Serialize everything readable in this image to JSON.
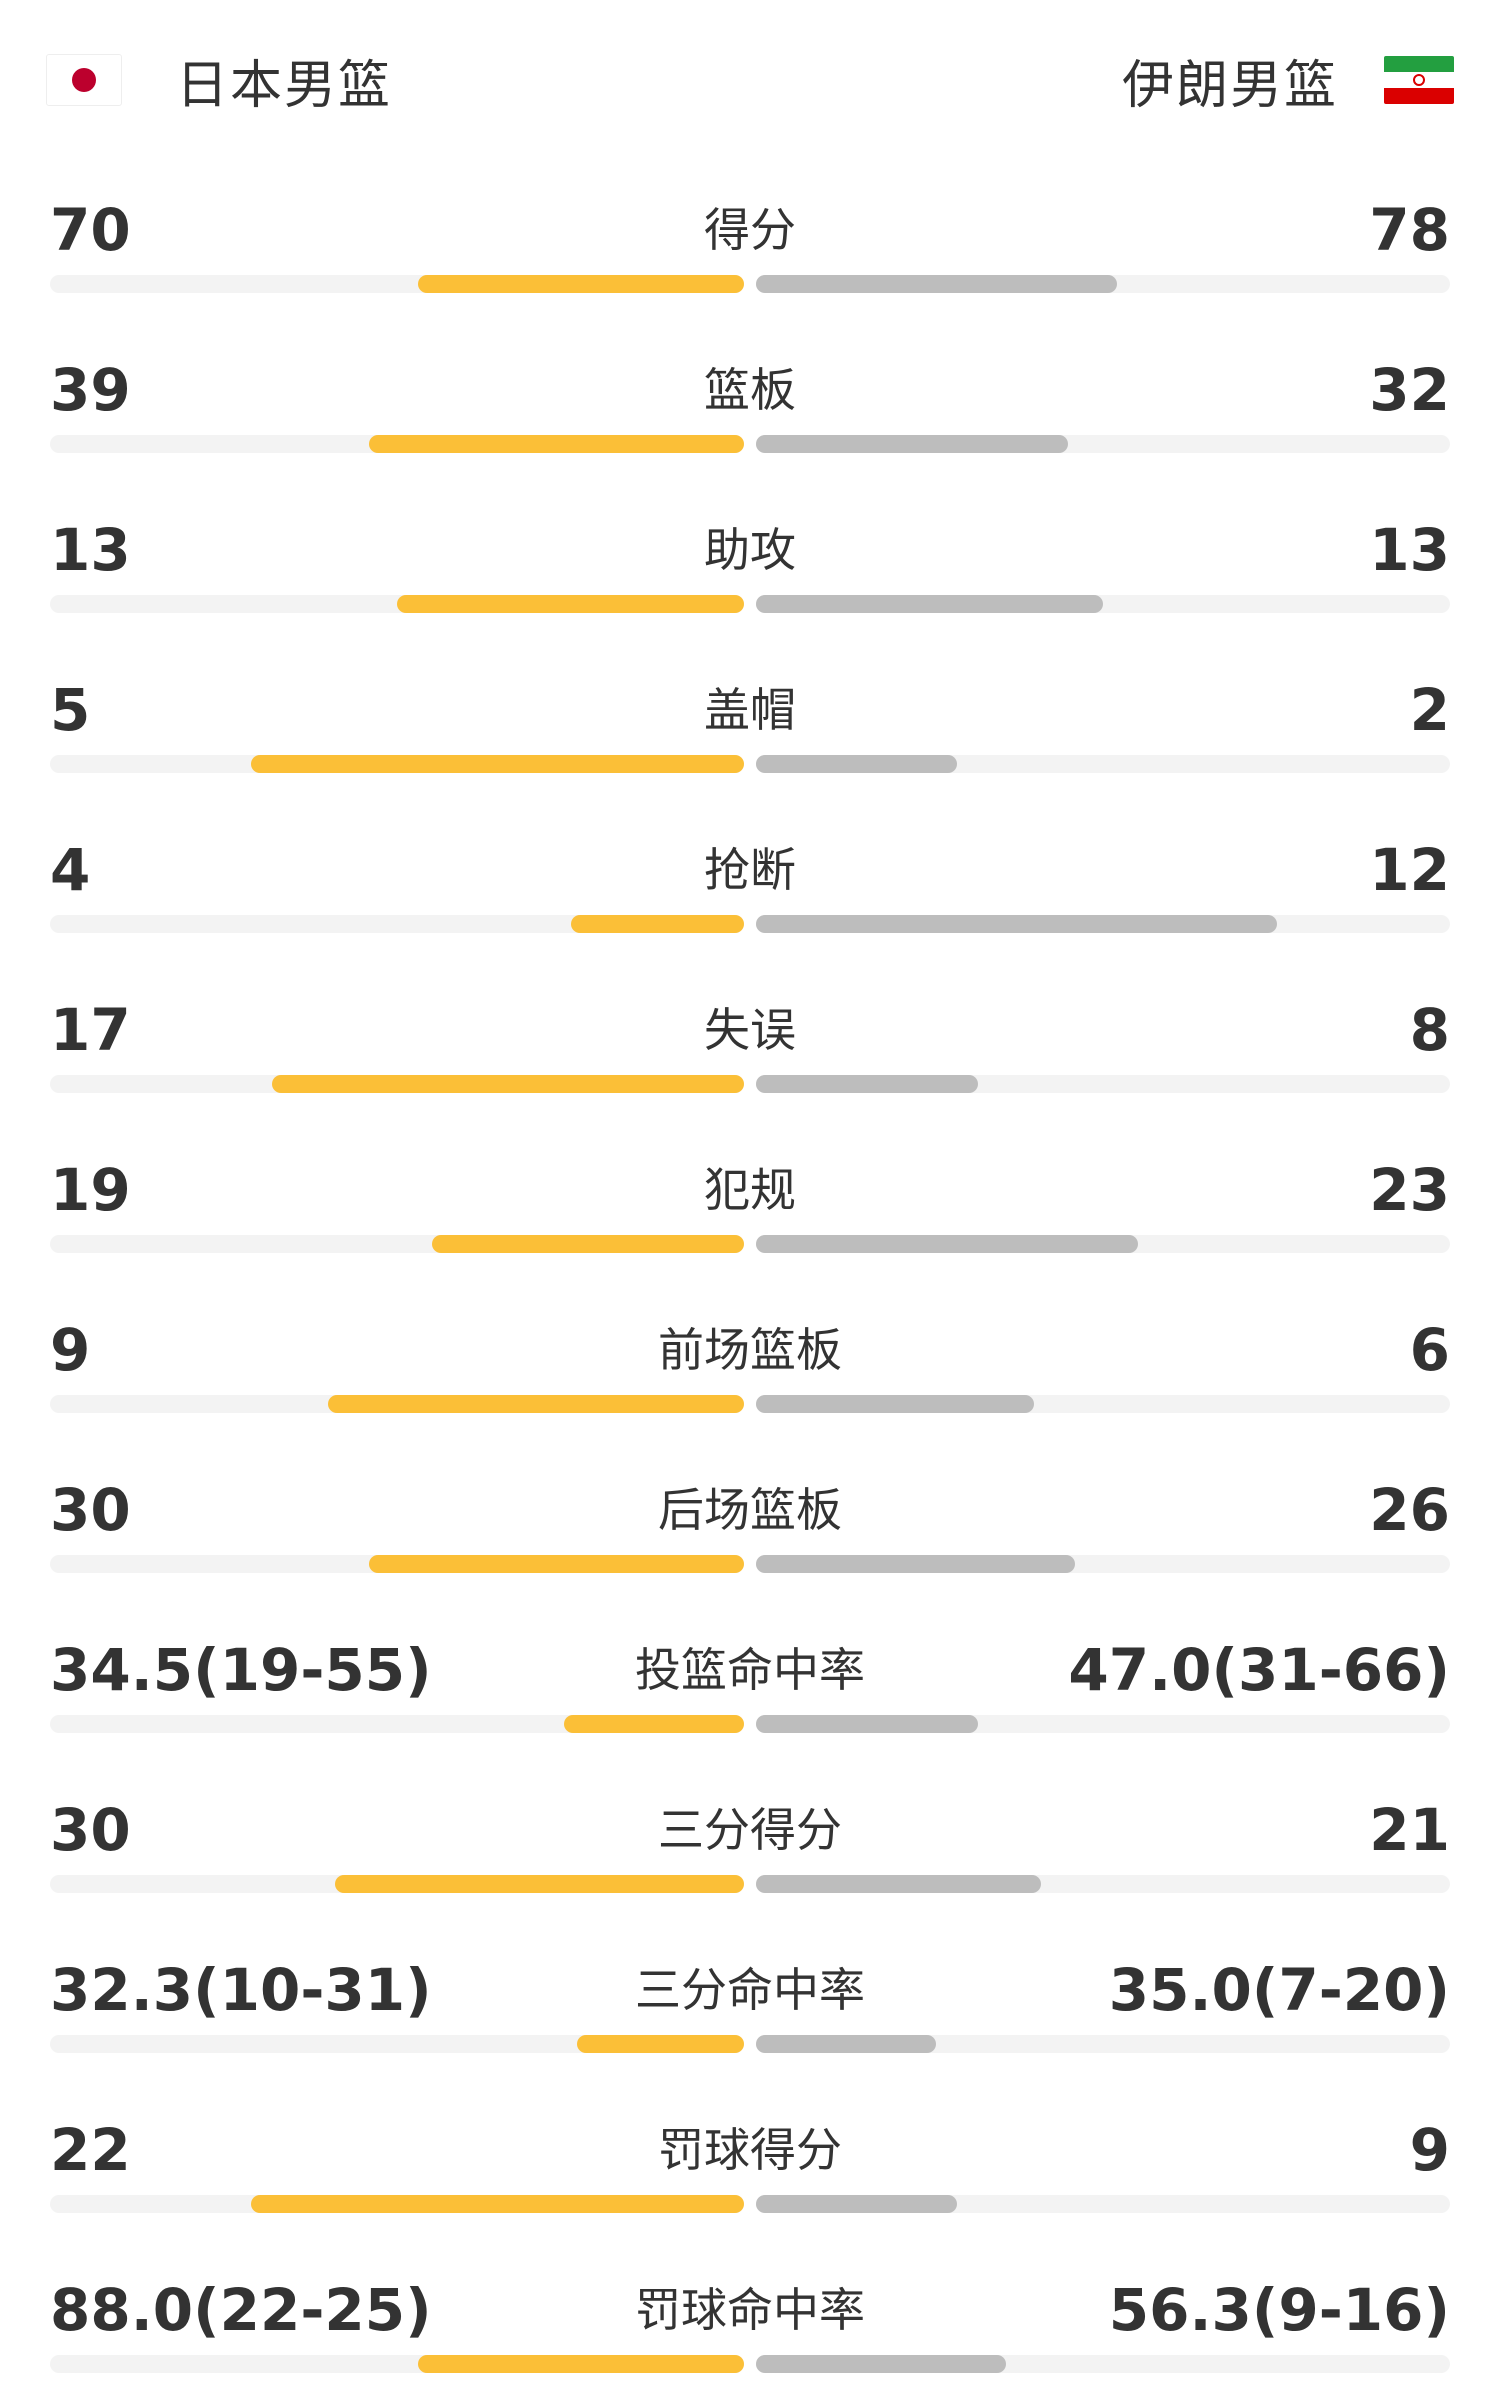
{
  "home_team": {
    "name": "日本男篮",
    "flag_icon": "japan-flag-icon"
  },
  "away_team": {
    "name": "伊朗男篮",
    "flag_icon": "iran-flag-icon"
  },
  "colors": {
    "home_bar": "#FBBF37",
    "away_bar": "#BDBDBD",
    "track": "#F3F3F3",
    "japan_red": "#BC002D",
    "iran_green": "#239F40",
    "iran_red": "#DA0000"
  },
  "stats": [
    {
      "label": "得分",
      "home": "70",
      "away": "78",
      "home_fill": 0.47,
      "away_fill": 0.52
    },
    {
      "label": "篮板",
      "home": "39",
      "away": "32",
      "home_fill": 0.54,
      "away_fill": 0.45
    },
    {
      "label": "助攻",
      "home": "13",
      "away": "13",
      "home_fill": 0.5,
      "away_fill": 0.5
    },
    {
      "label": "盖帽",
      "home": "5",
      "away": "2",
      "home_fill": 0.71,
      "away_fill": 0.29
    },
    {
      "label": "抢断",
      "home": "4",
      "away": "12",
      "home_fill": 0.25,
      "away_fill": 0.75
    },
    {
      "label": "失误",
      "home": "17",
      "away": "8",
      "home_fill": 0.68,
      "away_fill": 0.32
    },
    {
      "label": "犯规",
      "home": "19",
      "away": "23",
      "home_fill": 0.45,
      "away_fill": 0.55
    },
    {
      "label": "前场篮板",
      "home": "9",
      "away": "6",
      "home_fill": 0.6,
      "away_fill": 0.4
    },
    {
      "label": "后场篮板",
      "home": "30",
      "away": "26",
      "home_fill": 0.54,
      "away_fill": 0.46
    },
    {
      "label": "投篮命中率",
      "home": "34.5(19-55)",
      "away": "47.0(31-66)",
      "home_fill": 0.26,
      "away_fill": 0.32
    },
    {
      "label": "三分得分",
      "home": "30",
      "away": "21",
      "home_fill": 0.59,
      "away_fill": 0.41
    },
    {
      "label": "三分命中率",
      "home": "32.3(10-31)",
      "away": "35.0(7-20)",
      "home_fill": 0.24,
      "away_fill": 0.26
    },
    {
      "label": "罚球得分",
      "home": "22",
      "away": "9",
      "home_fill": 0.71,
      "away_fill": 0.29
    },
    {
      "label": "罚球命中率",
      "home": "88.0(22-25)",
      "away": "56.3(9-16)",
      "home_fill": 0.47,
      "away_fill": 0.36
    }
  ]
}
